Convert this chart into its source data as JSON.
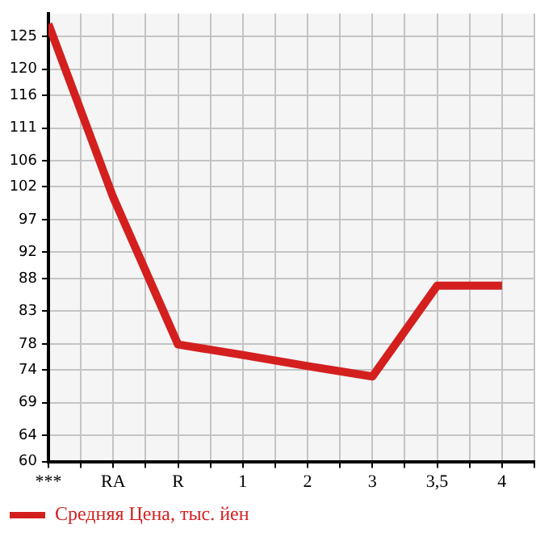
{
  "chart_data": {
    "type": "line",
    "categories": [
      "***",
      "RA",
      "R",
      "1",
      "2",
      "3",
      "3,5",
      "4"
    ],
    "series": [
      {
        "name": "Средняя Цена, тыс. йен",
        "color": "#d41f1f",
        "values": [
          126.9,
          100.4,
          77.9,
          76.3,
          74.6,
          73,
          86.9,
          86.9
        ]
      }
    ],
    "ylim": [
      60,
      128.5
    ],
    "yticks": [
      60,
      64,
      69,
      74,
      78,
      83,
      88,
      92,
      97,
      102,
      106,
      111,
      116,
      120,
      125
    ],
    "grid": true,
    "legend": "bottom left",
    "marker": "none",
    "line_style": "solid"
  }
}
